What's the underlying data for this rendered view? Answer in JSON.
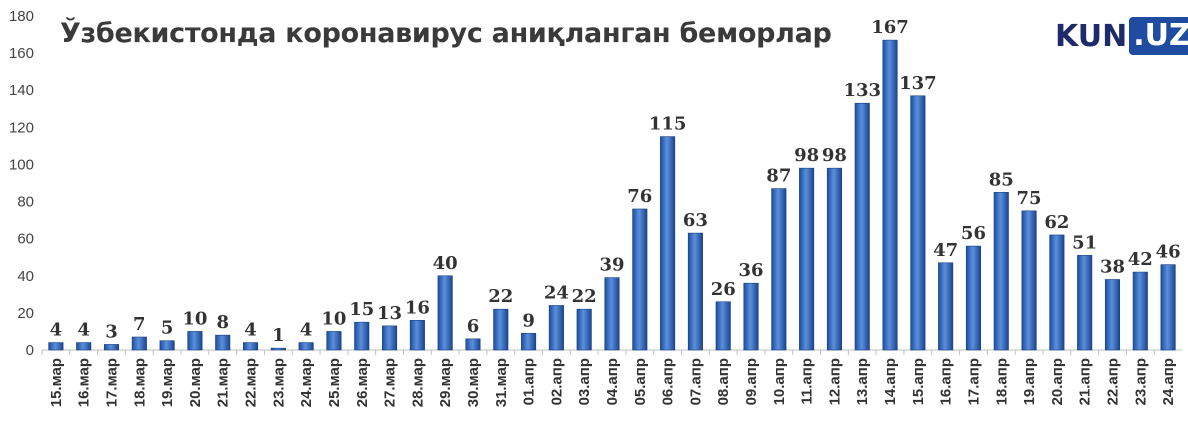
{
  "chart_data": {
    "type": "bar",
    "title": "Ўзбекистонда коронавирус аниқланган беморлар",
    "categories": [
      "15.мар",
      "16.мар",
      "17.мар",
      "18.мар",
      "19.мар",
      "20.мар",
      "21.мар",
      "22.мар",
      "23.мар",
      "24.мар",
      "25.мар",
      "26.мар",
      "27.мар",
      "28.мар",
      "29.мар",
      "30.мар",
      "31.мар",
      "01.апр",
      "02.апр",
      "03.апр",
      "04.апр",
      "05.апр",
      "06.апр",
      "07.апр",
      "08.апр",
      "09.апр",
      "10.апр",
      "11.апр",
      "12.апр",
      "13.апр",
      "14.апр",
      "15.апр",
      "16.апр",
      "17.апр",
      "18.апр",
      "19.апр",
      "20.апр",
      "21.апр",
      "22.апр",
      "23.апр",
      "24.апр"
    ],
    "values": [
      4,
      4,
      3,
      7,
      5,
      10,
      8,
      4,
      1,
      4,
      10,
      15,
      13,
      16,
      40,
      6,
      22,
      9,
      24,
      22,
      39,
      76,
      115,
      63,
      26,
      36,
      87,
      98,
      98,
      133,
      167,
      137,
      47,
      56,
      85,
      75,
      62,
      51,
      38,
      42,
      46
    ],
    "yticks": [
      "0",
      "20",
      "40",
      "60",
      "80",
      "100",
      "120",
      "140",
      "160",
      "180"
    ],
    "ylim": [
      0,
      180
    ],
    "grid": false,
    "legend": "none",
    "bar_color": "#2e62b8"
  },
  "logo": {
    "part1": "KUN",
    "part2": ".UZ"
  }
}
